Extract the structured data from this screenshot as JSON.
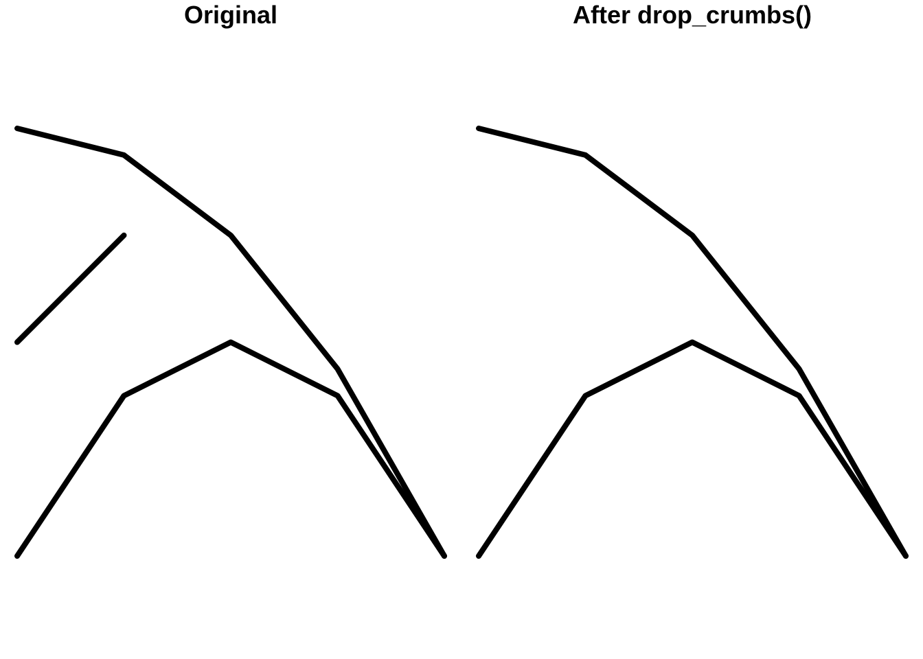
{
  "chart_data": [
    {
      "type": "line",
      "title": "Original",
      "line_color": "#000000",
      "xlim": [
        0,
        4
      ],
      "ylim": [
        0,
        4
      ],
      "series": [
        {
          "x": [
            0,
            1,
            2,
            3,
            4
          ],
          "y": [
            4,
            3.75,
            3,
            1.75,
            0
          ]
        },
        {
          "x": [
            0,
            1,
            2,
            3,
            4
          ],
          "y": [
            0,
            1.5,
            2,
            1.5,
            0
          ]
        },
        {
          "x": [
            0,
            1
          ],
          "y": [
            2,
            3
          ]
        }
      ]
    },
    {
      "type": "line",
      "title": "After drop_crumbs()",
      "line_color": "#000000",
      "xlim": [
        0,
        4
      ],
      "ylim": [
        0,
        4
      ],
      "series": [
        {
          "x": [
            0,
            1,
            2,
            3,
            4
          ],
          "y": [
            4,
            3.75,
            3,
            1.75,
            0
          ]
        },
        {
          "x": [
            0,
            1,
            2,
            3,
            4
          ],
          "y": [
            0,
            1.5,
            2,
            1.5,
            0
          ]
        }
      ]
    }
  ]
}
